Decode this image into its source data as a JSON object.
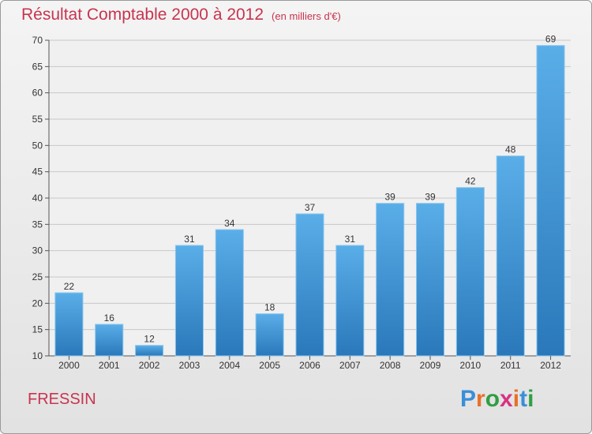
{
  "title": "Résultat Comptable 2000 à 2012",
  "subtitle": "(en milliers d'€)",
  "commune": "FRESSIN",
  "logo": {
    "text": "Proxiti",
    "colors": [
      "#3a8fd8",
      "#e8702a",
      "#2f9e44",
      "#d63384",
      "#e8702a",
      "#3a8fd8",
      "#2f9e44"
    ]
  },
  "colors": {
    "bar_top": "#5aaee8",
    "bar_bottom": "#2a78ba",
    "title": "#c8344f",
    "grid": "#c8c8c8"
  },
  "chart_data": {
    "type": "bar",
    "categories": [
      "2000",
      "2001",
      "2002",
      "2003",
      "2004",
      "2005",
      "2006",
      "2007",
      "2008",
      "2009",
      "2010",
      "2011",
      "2012"
    ],
    "values": [
      22,
      16,
      12,
      31,
      34,
      18,
      37,
      31,
      39,
      39,
      42,
      48,
      69
    ],
    "title": "Résultat Comptable 2000 à 2012",
    "ylim": [
      10,
      70
    ],
    "yticks": [
      10,
      15,
      20,
      25,
      30,
      35,
      40,
      45,
      50,
      55,
      60,
      65,
      70
    ],
    "grid": true,
    "legend": "none"
  }
}
